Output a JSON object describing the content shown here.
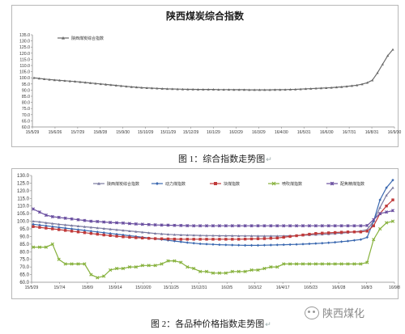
{
  "chart_data": [
    {
      "type": "line",
      "title": "陕西煤炭综合指数",
      "caption": "图 1：综合指数走势图",
      "legend_position": "top-left",
      "grid": false,
      "ylim": [
        60,
        135
      ],
      "yticks": [
        "60.0",
        "65.0",
        "70.0",
        "75.0",
        "80.0",
        "85.0",
        "90.0",
        "95.0",
        "100.0",
        "105.0",
        "110.0",
        "115.0",
        "120.0",
        "125.0",
        "130.0",
        "135.0"
      ],
      "x_tick_labels": [
        "15/5/29",
        "15/6/26",
        "15/7/29",
        "15/8/28",
        "15/9/30",
        "15/10/29",
        "15/11/29",
        "15/12/29",
        "16/1/29",
        "16/2/29",
        "16/3/29",
        "16/4/30",
        "16/5/31",
        "16/6/30",
        "16/7/31",
        "16/8/31",
        "16/9/30"
      ],
      "series": [
        {
          "name": "陕西煤炭综合指数",
          "color": "#6a6a6a",
          "marker": "triangle",
          "values": [
            100.0,
            99.5,
            99.0,
            98.6,
            98.2,
            97.9,
            97.6,
            97.3,
            97.0,
            96.6,
            96.2,
            95.8,
            95.4,
            95.0,
            94.6,
            94.2,
            93.8,
            93.4,
            93.0,
            92.6,
            92.3,
            92.0,
            91.8,
            91.6,
            91.4,
            91.2,
            91.0,
            90.9,
            90.8,
            90.7,
            90.6,
            90.6,
            90.5,
            90.5,
            90.5,
            90.5,
            90.4,
            90.4,
            90.4,
            90.3,
            90.3,
            90.3,
            90.2,
            90.2,
            90.2,
            90.2,
            90.2,
            90.3,
            90.3,
            90.4,
            90.5,
            90.6,
            90.8,
            91.0,
            91.2,
            91.4,
            91.6,
            91.8,
            92.0,
            92.3,
            92.6,
            93.0,
            93.5,
            94.0,
            94.8,
            96.0,
            98.0,
            104.0,
            111.0,
            118.0,
            123.0
          ]
        }
      ]
    },
    {
      "type": "line",
      "title": "",
      "caption": "图 2：各品种价格指数走势图",
      "legend_position": "top",
      "grid": false,
      "ylim": [
        60,
        130
      ],
      "yticks": [
        "60.0",
        "65.0",
        "70.0",
        "75.0",
        "80.0",
        "85.0",
        "90.0",
        "95.0",
        "100.0",
        "105.0",
        "110.0",
        "115.0",
        "120.0",
        "125.0",
        "130.0"
      ],
      "x_tick_labels": [
        "15/5/29",
        "15/7/4",
        "15/8/9",
        "15/9/14",
        "15/10/20",
        "15/11/25",
        "15/12/31",
        "16/2/5",
        "16/3/12",
        "16/4/17",
        "16/5/23",
        "16/6/28",
        "16/8/3",
        "16/9/8"
      ],
      "series": [
        {
          "name": "陕西煤炭综合指数",
          "color": "#7a7aa0",
          "marker": "triangle",
          "values": [
            100.0,
            99.6,
            99.0,
            98.5,
            98.0,
            97.6,
            97.2,
            96.8,
            96.4,
            96.0,
            95.6,
            95.2,
            94.8,
            94.4,
            94.0,
            93.6,
            93.2,
            92.8,
            92.4,
            92.0,
            91.7,
            91.4,
            91.2,
            91.0,
            90.9,
            90.8,
            90.7,
            90.6,
            90.6,
            90.5,
            90.5,
            90.5,
            90.4,
            90.4,
            90.4,
            90.3,
            90.3,
            90.3,
            90.3,
            90.4,
            90.5,
            90.6,
            90.8,
            91.0,
            91.2,
            91.4,
            91.6,
            91.9,
            92.2,
            92.6,
            93.0,
            93.6,
            94.5,
            100.0,
            109.0,
            117.0,
            122.0
          ]
        },
        {
          "name": "动力煤指数",
          "color": "#3a68b0",
          "marker": "diamond",
          "values": [
            98.0,
            97.5,
            97.0,
            96.5,
            96.0,
            95.5,
            95.0,
            94.5,
            94.0,
            93.5,
            93.0,
            92.5,
            92.0,
            91.5,
            91.0,
            90.5,
            90.0,
            89.5,
            89.0,
            88.5,
            88.0,
            87.5,
            87.0,
            86.5,
            86.0,
            85.6,
            85.2,
            85.0,
            84.8,
            84.6,
            84.5,
            84.4,
            84.3,
            84.2,
            84.2,
            84.2,
            84.3,
            84.4,
            84.5,
            84.6,
            84.7,
            84.8,
            85.0,
            85.2,
            85.4,
            85.6,
            85.9,
            86.2,
            86.6,
            87.0,
            87.5,
            88.0,
            89.5,
            100.0,
            114.0,
            122.0,
            127.0
          ]
        },
        {
          "name": "块煤指数",
          "color": "#c03a3a",
          "marker": "square",
          "values": [
            96.5,
            96.0,
            95.5,
            95.0,
            94.5,
            94.0,
            93.5,
            93.0,
            92.5,
            92.0,
            91.5,
            91.0,
            90.6,
            90.2,
            89.8,
            89.5,
            89.2,
            89.0,
            88.8,
            88.6,
            88.5,
            88.4,
            88.3,
            88.2,
            88.2,
            88.2,
            88.2,
            88.2,
            88.2,
            88.2,
            88.2,
            88.2,
            88.2,
            88.3,
            88.4,
            88.5,
            88.6,
            88.8,
            89.0,
            89.5,
            90.0,
            90.5,
            91.0,
            91.5,
            92.0,
            92.2,
            92.4,
            92.6,
            92.8,
            93.0,
            93.0,
            93.0,
            93.5,
            97.0,
            105.0,
            110.0,
            114.0
          ]
        },
        {
          "name": "喷吹煤指数",
          "color": "#86b13c",
          "marker": "x",
          "values": [
            83.0,
            83.0,
            83.0,
            85.0,
            75.0,
            72.0,
            72.0,
            72.0,
            72.0,
            65.0,
            63.0,
            64.0,
            68.0,
            69.0,
            69.0,
            70.0,
            70.0,
            71.0,
            71.0,
            71.0,
            72.0,
            74.0,
            74.0,
            73.0,
            70.0,
            69.0,
            67.0,
            67.0,
            66.0,
            66.0,
            66.0,
            67.0,
            67.0,
            67.0,
            68.0,
            68.0,
            69.0,
            70.0,
            70.0,
            72.0,
            72.0,
            72.0,
            72.0,
            72.0,
            72.0,
            72.0,
            72.0,
            72.0,
            72.0,
            72.0,
            72.0,
            72.0,
            73.0,
            88.0,
            95.0,
            99.0,
            100.0
          ]
        },
        {
          "name": "配焦精煤指数",
          "color": "#6a4fa0",
          "marker": "asterisk",
          "values": [
            108.0,
            106.0,
            104.0,
            103.0,
            102.5,
            102.0,
            101.5,
            101.0,
            100.5,
            100.0,
            99.8,
            99.5,
            99.2,
            99.0,
            98.8,
            98.5,
            98.2,
            98.0,
            97.8,
            97.6,
            97.5,
            97.4,
            97.3,
            97.2,
            97.1,
            97.0,
            97.0,
            97.0,
            97.0,
            97.0,
            97.0,
            97.0,
            97.0,
            97.0,
            97.0,
            97.0,
            97.0,
            97.0,
            97.0,
            97.0,
            97.0,
            97.0,
            97.0,
            97.0,
            97.0,
            97.0,
            97.0,
            97.0,
            97.0,
            97.0,
            97.0,
            97.0,
            97.2,
            101.0,
            105.0,
            106.0,
            107.0
          ]
        }
      ]
    }
  ],
  "watermark": {
    "text": "陕西煤化",
    "icon": "wechat-icon"
  }
}
